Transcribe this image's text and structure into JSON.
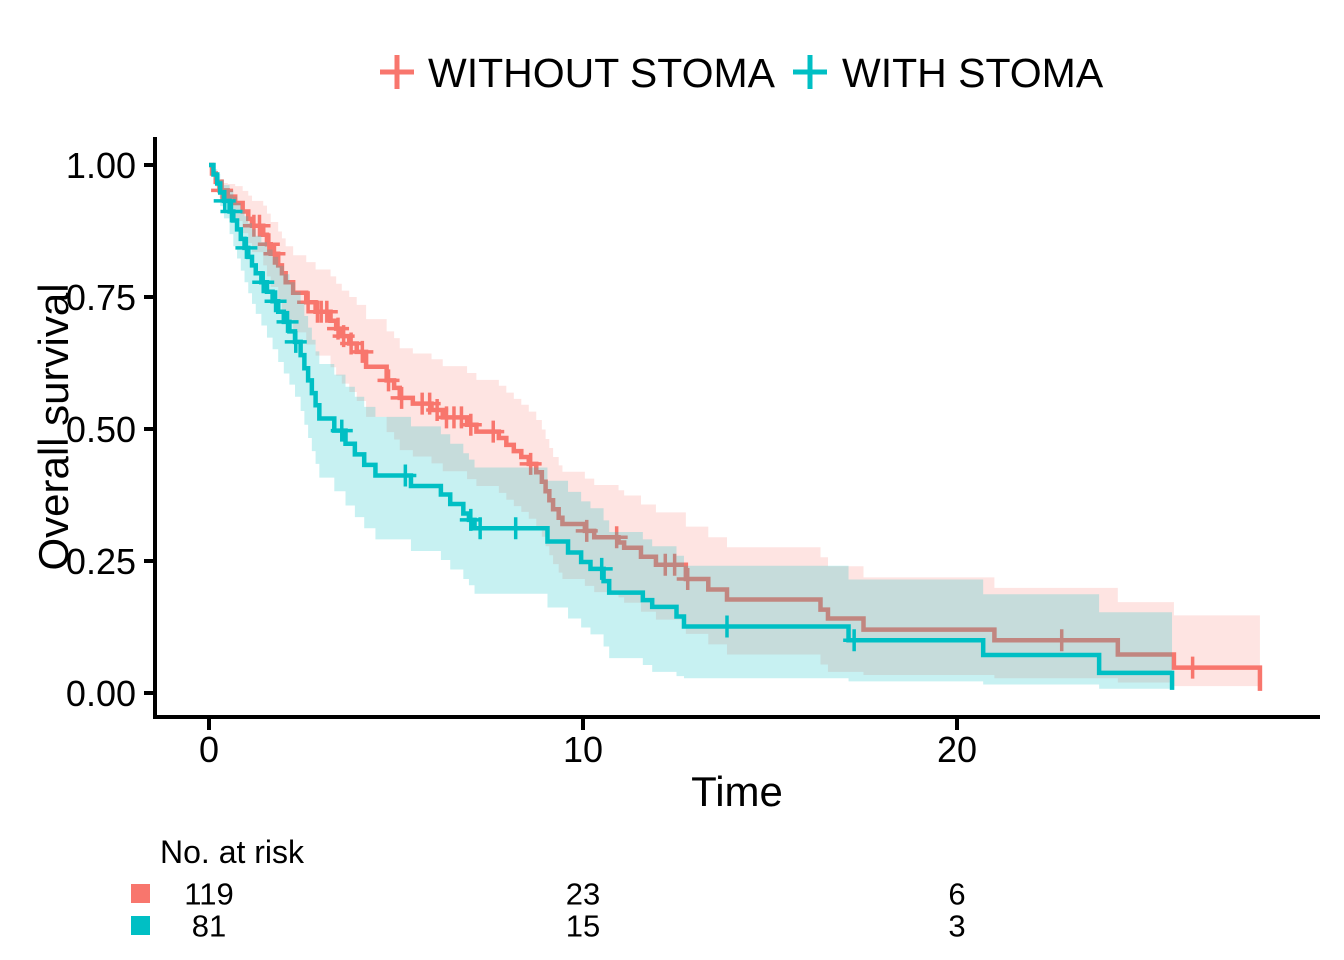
{
  "legend": {
    "items": [
      {
        "label": "WITHOUT STOMA",
        "color": "#F8766D"
      },
      {
        "label": "WITH STOMA",
        "color": "#00BFC4"
      }
    ]
  },
  "axes": {
    "y_label": "Overall survival",
    "x_label": "Time",
    "y_ticks": [
      "1.00",
      "0.75",
      "0.50",
      "0.25",
      "0.00"
    ],
    "x_ticks": [
      "0",
      "10",
      "20"
    ]
  },
  "risk_table": {
    "title": "No. at risk",
    "times": [
      0,
      10,
      20
    ],
    "rows": [
      {
        "group": "WITHOUT STOMA",
        "color": "#F8766D",
        "counts": [
          "119",
          "23",
          "6"
        ]
      },
      {
        "group": "WITH STOMA",
        "color": "#00BFC4",
        "counts": [
          "81",
          "15",
          "3"
        ]
      }
    ]
  },
  "chart_data": {
    "type": "line",
    "subtype": "kaplan-meier-step",
    "title": "",
    "xlabel": "Time",
    "ylabel": "Overall survival",
    "xlim": [
      0,
      29.5
    ],
    "ylim": [
      0,
      1
    ],
    "x_tick_values": [
      0,
      10,
      20
    ],
    "y_tick_values": [
      1.0,
      0.75,
      0.5,
      0.25,
      0.0
    ],
    "grid": false,
    "legend_position": "top",
    "series": [
      {
        "name": "WITHOUT STOMA",
        "color": "#F8766D",
        "band_opacity": 0.2,
        "steps": [
          [
            0,
            1.0,
            1.0,
            1.0
          ],
          [
            0.08,
            0.984,
            0.979,
            0.988
          ],
          [
            0.18,
            0.968,
            0.958,
            0.978
          ],
          [
            0.28,
            0.952,
            0.937,
            0.966
          ],
          [
            0.5,
            0.94,
            0.914,
            0.964
          ],
          [
            0.7,
            0.928,
            0.894,
            0.96
          ],
          [
            0.9,
            0.912,
            0.871,
            0.951
          ],
          [
            1.05,
            0.898,
            0.852,
            0.942
          ],
          [
            1.15,
            0.885,
            0.835,
            0.932
          ],
          [
            1.45,
            0.868,
            0.81,
            0.923
          ],
          [
            1.55,
            0.85,
            0.789,
            0.908
          ],
          [
            1.65,
            0.832,
            0.769,
            0.892
          ],
          [
            1.85,
            0.81,
            0.743,
            0.874
          ],
          [
            1.95,
            0.795,
            0.726,
            0.861
          ],
          [
            2.05,
            0.778,
            0.707,
            0.846
          ],
          [
            2.25,
            0.758,
            0.683,
            0.829
          ],
          [
            2.6,
            0.74,
            0.66,
            0.816
          ],
          [
            2.85,
            0.722,
            0.639,
            0.802
          ],
          [
            3.25,
            0.705,
            0.617,
            0.789
          ],
          [
            3.4,
            0.69,
            0.601,
            0.775
          ],
          [
            3.55,
            0.676,
            0.586,
            0.762
          ],
          [
            3.75,
            0.662,
            0.57,
            0.75
          ],
          [
            3.95,
            0.646,
            0.553,
            0.735
          ],
          [
            4.2,
            0.618,
            0.523,
            0.708
          ],
          [
            4.75,
            0.592,
            0.494,
            0.685
          ],
          [
            4.95,
            0.578,
            0.48,
            0.672
          ],
          [
            5.1,
            0.559,
            0.46,
            0.653
          ],
          [
            5.45,
            0.548,
            0.448,
            0.643
          ],
          [
            5.95,
            0.536,
            0.435,
            0.632
          ],
          [
            6.25,
            0.522,
            0.42,
            0.619
          ],
          [
            6.9,
            0.508,
            0.405,
            0.606
          ],
          [
            7.15,
            0.495,
            0.392,
            0.593
          ],
          [
            7.75,
            0.483,
            0.379,
            0.582
          ],
          [
            7.95,
            0.47,
            0.366,
            0.569
          ],
          [
            8.15,
            0.458,
            0.354,
            0.557
          ],
          [
            8.35,
            0.447,
            0.343,
            0.546
          ],
          [
            8.55,
            0.434,
            0.33,
            0.533
          ],
          [
            8.75,
            0.418,
            0.314,
            0.517
          ],
          [
            8.9,
            0.4,
            0.296,
            0.499
          ],
          [
            9.0,
            0.382,
            0.278,
            0.481
          ],
          [
            9.1,
            0.365,
            0.261,
            0.464
          ],
          [
            9.2,
            0.348,
            0.244,
            0.447
          ],
          [
            9.35,
            0.332,
            0.228,
            0.431
          ],
          [
            9.45,
            0.32,
            0.216,
            0.419
          ],
          [
            10.05,
            0.307,
            0.203,
            0.406
          ],
          [
            10.3,
            0.295,
            0.191,
            0.394
          ],
          [
            10.95,
            0.285,
            0.181,
            0.384
          ],
          [
            11.1,
            0.275,
            0.171,
            0.374
          ],
          [
            11.55,
            0.258,
            0.154,
            0.357
          ],
          [
            11.95,
            0.243,
            0.139,
            0.342
          ],
          [
            12.75,
            0.216,
            0.112,
            0.315
          ],
          [
            13.35,
            0.196,
            0.092,
            0.295
          ],
          [
            13.85,
            0.177,
            0.073,
            0.276
          ],
          [
            16.35,
            0.158,
            0.054,
            0.257
          ],
          [
            16.55,
            0.141,
            0.04,
            0.24
          ],
          [
            17.5,
            0.12,
            0.034,
            0.219
          ],
          [
            21.0,
            0.1,
            0.028,
            0.199
          ],
          [
            24.3,
            0.073,
            0.02,
            0.172
          ],
          [
            25.8,
            0.048,
            0.013,
            0.147
          ],
          [
            28.1,
            0.004,
            0.001,
            0.103
          ]
        ],
        "censor_times": [
          0.35,
          1.2,
          1.35,
          1.6,
          1.75,
          2.65,
          2.9,
          3.0,
          3.15,
          3.45,
          3.6,
          3.8,
          4.1,
          4.8,
          5.15,
          5.7,
          5.9,
          6.1,
          6.35,
          6.55,
          6.75,
          7.0,
          7.6,
          8.6,
          10.1,
          10.9,
          12.2,
          12.45,
          12.8,
          22.8,
          26.3
        ]
      },
      {
        "name": "WITH STOMA",
        "color": "#00BFC4",
        "band_opacity": 0.22,
        "steps": [
          [
            0,
            1.0,
            1.0,
            1.0
          ],
          [
            0.12,
            0.982,
            0.971,
            0.992
          ],
          [
            0.22,
            0.965,
            0.946,
            0.983
          ],
          [
            0.3,
            0.948,
            0.922,
            0.972
          ],
          [
            0.4,
            0.932,
            0.899,
            0.962
          ],
          [
            0.55,
            0.912,
            0.869,
            0.952
          ],
          [
            0.65,
            0.895,
            0.846,
            0.94
          ],
          [
            0.75,
            0.878,
            0.823,
            0.928
          ],
          [
            0.85,
            0.86,
            0.8,
            0.915
          ],
          [
            0.95,
            0.843,
            0.778,
            0.903
          ],
          [
            1.05,
            0.826,
            0.757,
            0.89
          ],
          [
            1.15,
            0.81,
            0.737,
            0.878
          ],
          [
            1.25,
            0.795,
            0.718,
            0.866
          ],
          [
            1.4,
            0.778,
            0.696,
            0.854
          ],
          [
            1.55,
            0.76,
            0.673,
            0.84
          ],
          [
            1.7,
            0.742,
            0.651,
            0.826
          ],
          [
            1.85,
            0.722,
            0.627,
            0.809
          ],
          [
            2.0,
            0.703,
            0.605,
            0.793
          ],
          [
            2.15,
            0.685,
            0.584,
            0.778
          ],
          [
            2.3,
            0.665,
            0.561,
            0.76
          ],
          [
            2.45,
            0.64,
            0.534,
            0.738
          ],
          [
            2.55,
            0.615,
            0.508,
            0.714
          ],
          [
            2.65,
            0.592,
            0.483,
            0.692
          ],
          [
            2.75,
            0.568,
            0.458,
            0.669
          ],
          [
            2.85,
            0.545,
            0.434,
            0.647
          ],
          [
            2.95,
            0.52,
            0.408,
            0.623
          ],
          [
            3.35,
            0.497,
            0.382,
            0.603
          ],
          [
            3.65,
            0.472,
            0.355,
            0.58
          ],
          [
            3.9,
            0.452,
            0.333,
            0.561
          ],
          [
            4.15,
            0.432,
            0.312,
            0.542
          ],
          [
            4.45,
            0.412,
            0.291,
            0.523
          ],
          [
            5.4,
            0.392,
            0.269,
            0.505
          ],
          [
            6.2,
            0.376,
            0.252,
            0.49
          ],
          [
            6.45,
            0.358,
            0.234,
            0.472
          ],
          [
            6.8,
            0.34,
            0.216,
            0.454
          ],
          [
            6.95,
            0.328,
            0.204,
            0.442
          ],
          [
            7.1,
            0.312,
            0.188,
            0.427
          ],
          [
            9.05,
            0.287,
            0.162,
            0.402
          ],
          [
            9.6,
            0.266,
            0.141,
            0.381
          ],
          [
            9.95,
            0.248,
            0.124,
            0.363
          ],
          [
            10.2,
            0.235,
            0.111,
            0.35
          ],
          [
            10.55,
            0.212,
            0.088,
            0.327
          ],
          [
            10.7,
            0.19,
            0.066,
            0.305
          ],
          [
            11.6,
            0.176,
            0.053,
            0.291
          ],
          [
            11.85,
            0.163,
            0.04,
            0.278
          ],
          [
            12.5,
            0.145,
            0.032,
            0.26
          ],
          [
            12.7,
            0.126,
            0.028,
            0.241
          ],
          [
            17.1,
            0.1,
            0.022,
            0.215
          ],
          [
            20.7,
            0.072,
            0.016,
            0.187
          ],
          [
            23.8,
            0.038,
            0.008,
            0.153
          ],
          [
            25.75,
            0.006,
            0.001,
            0.121
          ]
        ],
        "censor_times": [
          0.42,
          0.6,
          1.0,
          1.45,
          1.78,
          2.1,
          2.32,
          3.55,
          5.25,
          7.0,
          7.25,
          8.2,
          10.5,
          13.85,
          17.25
        ]
      }
    ]
  }
}
